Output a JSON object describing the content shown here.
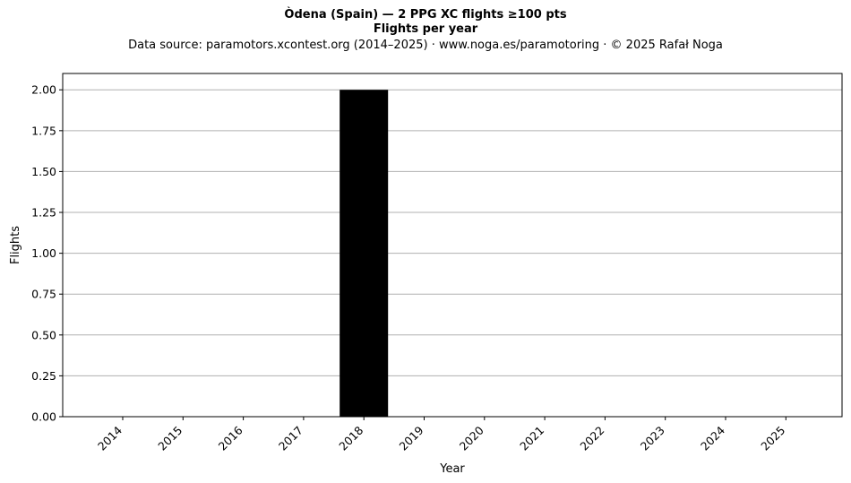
{
  "chart_data": {
    "type": "bar",
    "title": "Òdena (Spain)  —  2 PPG XC flights ≥100 pts",
    "subtitle": "Flights per year",
    "source_note": "Data source: paramotors.xcontest.org (2014–2025)  ·  www.noga.es/paramotoring  ·  © 2025 Rafał Noga",
    "xlabel": "Year",
    "ylabel": "Flights",
    "categories": [
      "2014",
      "2015",
      "2016",
      "2017",
      "2018",
      "2019",
      "2020",
      "2021",
      "2022",
      "2023",
      "2024",
      "2025"
    ],
    "values": [
      0,
      0,
      0,
      0,
      2,
      0,
      0,
      0,
      0,
      0,
      0,
      0
    ],
    "ylim": [
      0,
      2.1
    ],
    "yticks": [
      "0.00",
      "0.25",
      "0.50",
      "0.75",
      "1.00",
      "1.25",
      "1.50",
      "1.75",
      "2.00"
    ],
    "bar_color": "#000000",
    "grid": "horizontal"
  }
}
